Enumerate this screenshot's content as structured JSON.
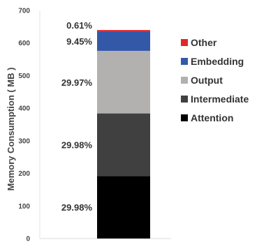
{
  "chart_data": {
    "type": "bar",
    "stacked": true,
    "categories": [
      ""
    ],
    "ylabel": "Memory Consumption ( MB )",
    "ylim": [
      0,
      700
    ],
    "yticks": [
      0,
      100,
      200,
      300,
      400,
      500,
      600,
      700
    ],
    "grid": false,
    "legend_position": "right",
    "series": [
      {
        "name": "Attention",
        "values": [
          192
        ],
        "label": "29.98%",
        "color": "#000000"
      },
      {
        "name": "Intermediate",
        "values": [
          192
        ],
        "label": "29.98%",
        "color": "#404040"
      },
      {
        "name": "Output",
        "values": [
          192
        ],
        "label": "29.97%",
        "color": "#b3b0b0"
      },
      {
        "name": "Embedding",
        "values": [
          60
        ],
        "label": "9.45%",
        "color": "#3358a8"
      },
      {
        "name": "Other",
        "values": [
          4
        ],
        "label": "0.61%",
        "color": "#e0282a"
      }
    ]
  }
}
